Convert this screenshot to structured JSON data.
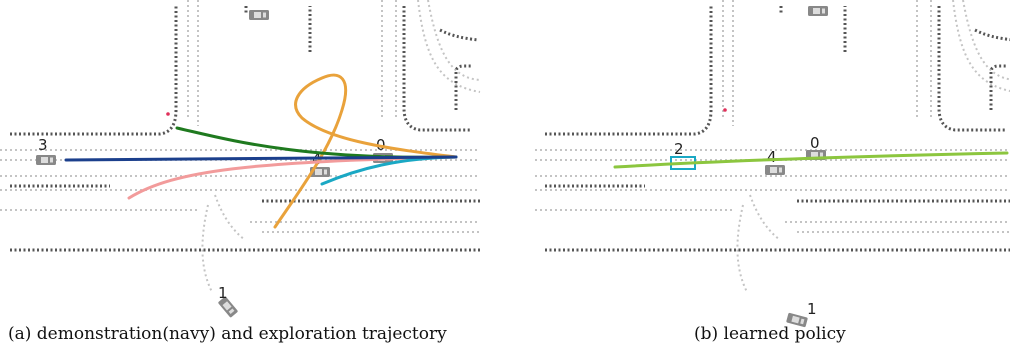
{
  "panels": [
    {
      "caption": "(a)  demonstration(navy) and exploration trajectory",
      "vehicle_labels": [
        "3",
        "4",
        "0",
        "1"
      ],
      "trajectories": [
        {
          "color": "#1b3f8c"
        },
        {
          "color": "#1f7a1f"
        },
        {
          "color": "#f29b9b"
        },
        {
          "color": "#e9a23b"
        },
        {
          "color": "#1aa8c4"
        }
      ]
    },
    {
      "caption": "(b)  learned policy",
      "vehicle_labels": [
        "2",
        "4",
        "0",
        "1"
      ],
      "trajectories": [
        {
          "color": "#8cc63f"
        }
      ],
      "highlight_color": "#1aa8c4"
    }
  ],
  "colors": {
    "road_edge": "#555555",
    "lane_line": "#bbbbbb",
    "vehicle": "#9a9a9a",
    "marker": "#e0305a"
  }
}
